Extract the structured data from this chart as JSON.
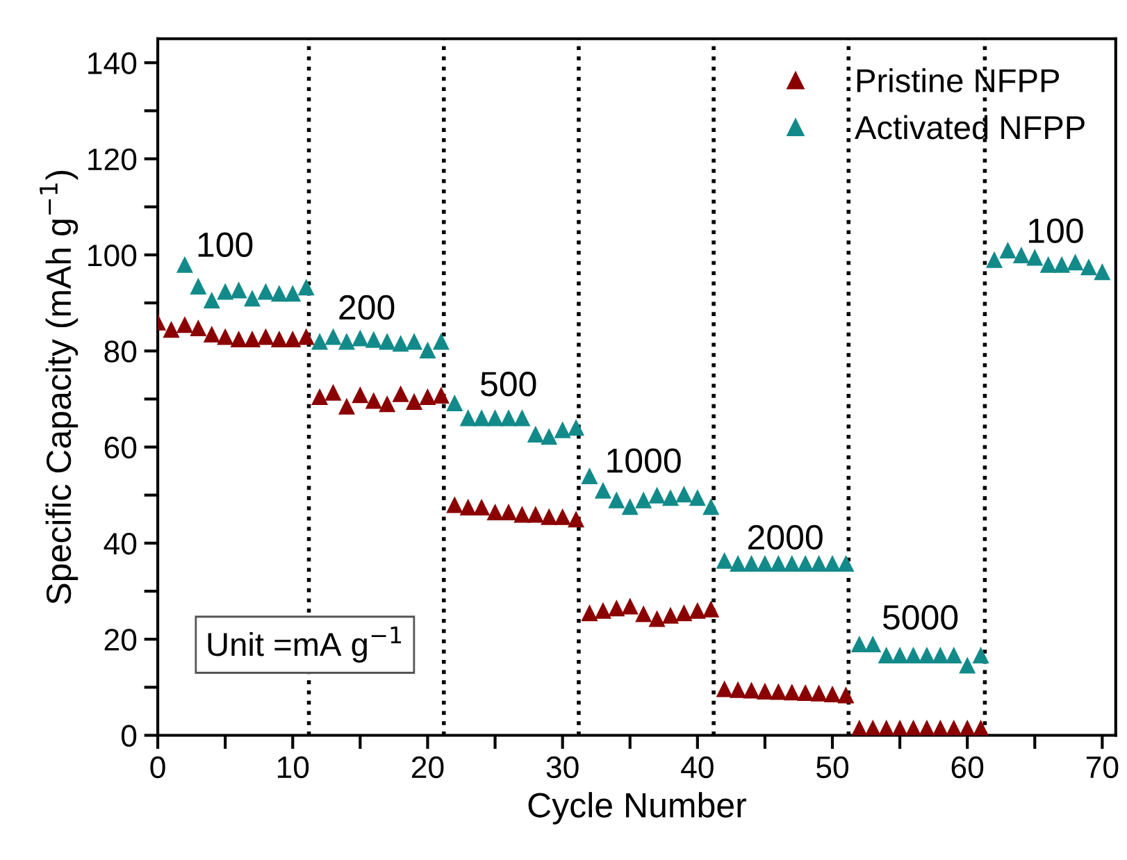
{
  "chart_data": {
    "type": "scatter",
    "xlabel": "Cycle Number",
    "ylabel": "Specific Capacity (mAh g$^{−1}$)",
    "xlim": [
      0,
      71
    ],
    "ylim": [
      0,
      145
    ],
    "xticks": [
      0,
      {
        "value": 5,
        "label": null
      },
      10,
      {
        "value": 15,
        "label": null
      },
      20,
      {
        "value": 25,
        "label": null
      },
      30,
      {
        "value": 35,
        "label": null
      },
      40,
      {
        "value": 45,
        "label": null
      },
      50,
      {
        "value": 55,
        "label": null
      },
      60,
      {
        "value": 65,
        "label": null
      },
      70
    ],
    "yticks": [
      0,
      {
        "value": 10,
        "label": null
      },
      20,
      {
        "value": 30,
        "label": null
      },
      40,
      {
        "value": 50,
        "label": null
      },
      60,
      {
        "value": 70,
        "label": null
      },
      80,
      {
        "value": 90,
        "label": null
      },
      100,
      {
        "value": 110,
        "label": null
      },
      120,
      {
        "value": 130,
        "label": null
      },
      140
    ],
    "marker": "triangle",
    "legend": "top right",
    "grid": false,
    "series": [
      {
        "name": "Pristine NFPP",
        "color": "#8b0000",
        "x": [
          0,
          1,
          2,
          3,
          4,
          5,
          6,
          7,
          8,
          9,
          10,
          11,
          12,
          13,
          14,
          15,
          16,
          17,
          18,
          19,
          20,
          21,
          22,
          23,
          24,
          25,
          26,
          27,
          28,
          29,
          30,
          31,
          32,
          33,
          34,
          35,
          36,
          37,
          38,
          39,
          40,
          41,
          42,
          43,
          44,
          45,
          46,
          47,
          48,
          49,
          50,
          51,
          52,
          53,
          54,
          55,
          56,
          57,
          58,
          59,
          60,
          61
        ],
        "values": [
          86,
          84.5,
          85.5,
          84.8,
          83.5,
          83,
          82.5,
          82.5,
          83,
          82.5,
          82.5,
          83,
          70.5,
          71.4,
          68.5,
          70.9,
          69.7,
          69,
          71.1,
          69.5,
          70.5,
          70.8,
          48,
          47.5,
          47.5,
          46.5,
          46.5,
          46,
          46,
          45.5,
          45.5,
          45,
          25.5,
          26,
          26.5,
          26.9,
          25.3,
          24.3,
          25,
          25.5,
          26,
          26.3,
          9.7,
          9.5,
          9.4,
          9.2,
          9.1,
          9,
          8.9,
          8.8,
          8.6,
          8.4,
          1.5,
          1.5,
          1.5,
          1.5,
          1.5,
          1.5,
          1.5,
          1.5,
          1.5,
          1.5
        ]
      },
      {
        "name": "Activated NFPP",
        "color": "#138a8a",
        "x": [
          2,
          3,
          4,
          5,
          6,
          7,
          8,
          9,
          10,
          11,
          12,
          13,
          14,
          15,
          16,
          17,
          18,
          19,
          20,
          21,
          22,
          23,
          24,
          25,
          26,
          27,
          28,
          29,
          30,
          31,
          32,
          33,
          34,
          35,
          36,
          37,
          38,
          39,
          40,
          41,
          42,
          43,
          44,
          45,
          46,
          47,
          48,
          49,
          50,
          51,
          52,
          53,
          54,
          55,
          56,
          57,
          58,
          59,
          60,
          61,
          62,
          63,
          64,
          65,
          66,
          67,
          68,
          69,
          70
        ],
        "values": [
          98,
          93.5,
          90.6,
          92.4,
          92.7,
          91,
          92.4,
          92,
          92,
          93.3,
          82,
          83,
          82,
          82.7,
          82.4,
          82,
          81.6,
          82,
          80.2,
          82,
          69.2,
          66.1,
          66.1,
          66.1,
          66.1,
          66.1,
          62.7,
          62.2,
          63.6,
          64.1,
          54,
          51,
          49,
          47.6,
          49,
          50,
          49.5,
          50.2,
          49.5,
          47.6,
          36.4,
          35.8,
          35.8,
          35.8,
          35.8,
          35.8,
          35.8,
          35.8,
          35.8,
          35.8,
          19,
          19,
          16.7,
          16.7,
          16.7,
          16.7,
          16.7,
          16.7,
          14.6,
          16.7,
          99,
          101,
          100,
          99.5,
          98,
          98,
          98.5,
          97.5,
          96.5
        ]
      }
    ],
    "ref_lines": [
      {
        "axis": "x",
        "value": 11.2,
        "color": "#000000",
        "line_style": "dotted"
      },
      {
        "axis": "x",
        "value": 21.2,
        "color": "#000000",
        "line_style": "dotted"
      },
      {
        "axis": "x",
        "value": 31.2,
        "color": "#000000",
        "line_style": "dotted"
      },
      {
        "axis": "x",
        "value": 41.2,
        "color": "#000000",
        "line_style": "dotted"
      },
      {
        "axis": "x",
        "value": 51.2,
        "color": "#000000",
        "line_style": "dotted"
      },
      {
        "axis": "x",
        "value": 61.3,
        "color": "#000000",
        "line_style": "dotted"
      }
    ],
    "annotations": [
      "100",
      "200",
      "500",
      "1000",
      "2000",
      "5000",
      "100",
      "Unit =mA g$^{−1}$"
    ]
  }
}
